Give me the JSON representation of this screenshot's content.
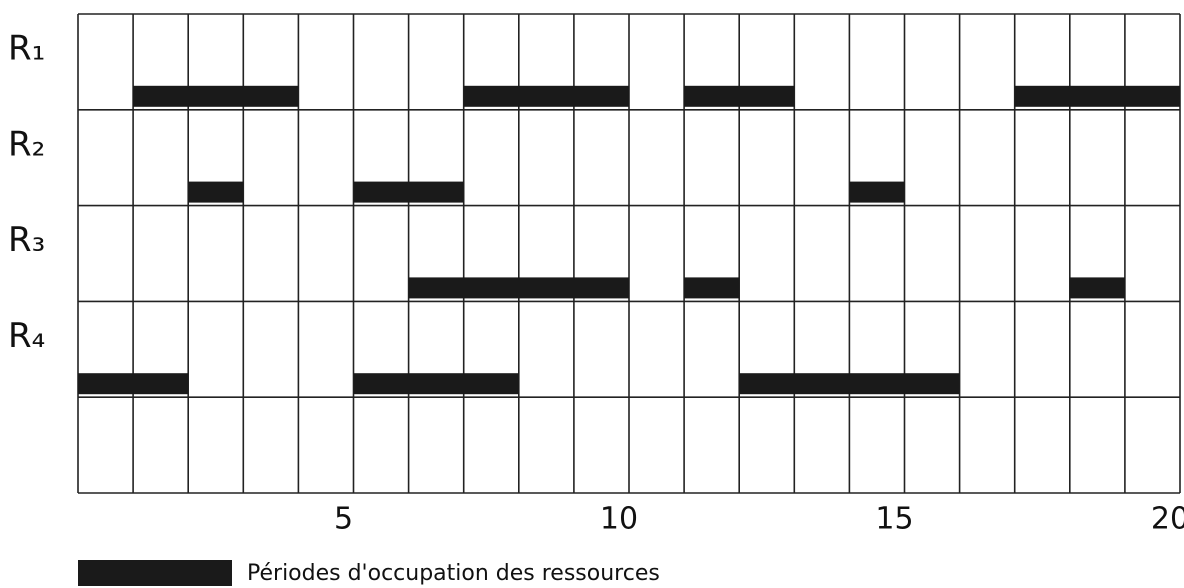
{
  "chart_data": {
    "type": "gantt",
    "series": [
      {
        "name": "R₁",
        "intervals": [
          [
            1,
            4
          ],
          [
            7,
            10
          ],
          [
            11,
            13
          ],
          [
            17,
            20
          ]
        ]
      },
      {
        "name": "R₂",
        "intervals": [
          [
            2,
            3
          ],
          [
            5,
            7
          ],
          [
            14,
            15
          ]
        ]
      },
      {
        "name": "R₃",
        "intervals": [
          [
            6,
            10
          ],
          [
            11,
            12
          ],
          [
            18,
            19
          ]
        ]
      },
      {
        "name": "R₄",
        "intervals": [
          [
            0,
            2
          ],
          [
            5,
            8
          ],
          [
            12,
            16
          ]
        ]
      }
    ],
    "color": "#1a1a1a",
    "xlim": [
      0,
      20
    ],
    "xticks": [
      5,
      10,
      15,
      20
    ],
    "x_minor_ticks": [
      0,
      1,
      2,
      3,
      4,
      5,
      6,
      7,
      8,
      9,
      10,
      11,
      12,
      13,
      14,
      15,
      16,
      17,
      18,
      19,
      20
    ],
    "grid": true,
    "legend": {
      "label": "Périodes d'occupation des ressources"
    }
  }
}
